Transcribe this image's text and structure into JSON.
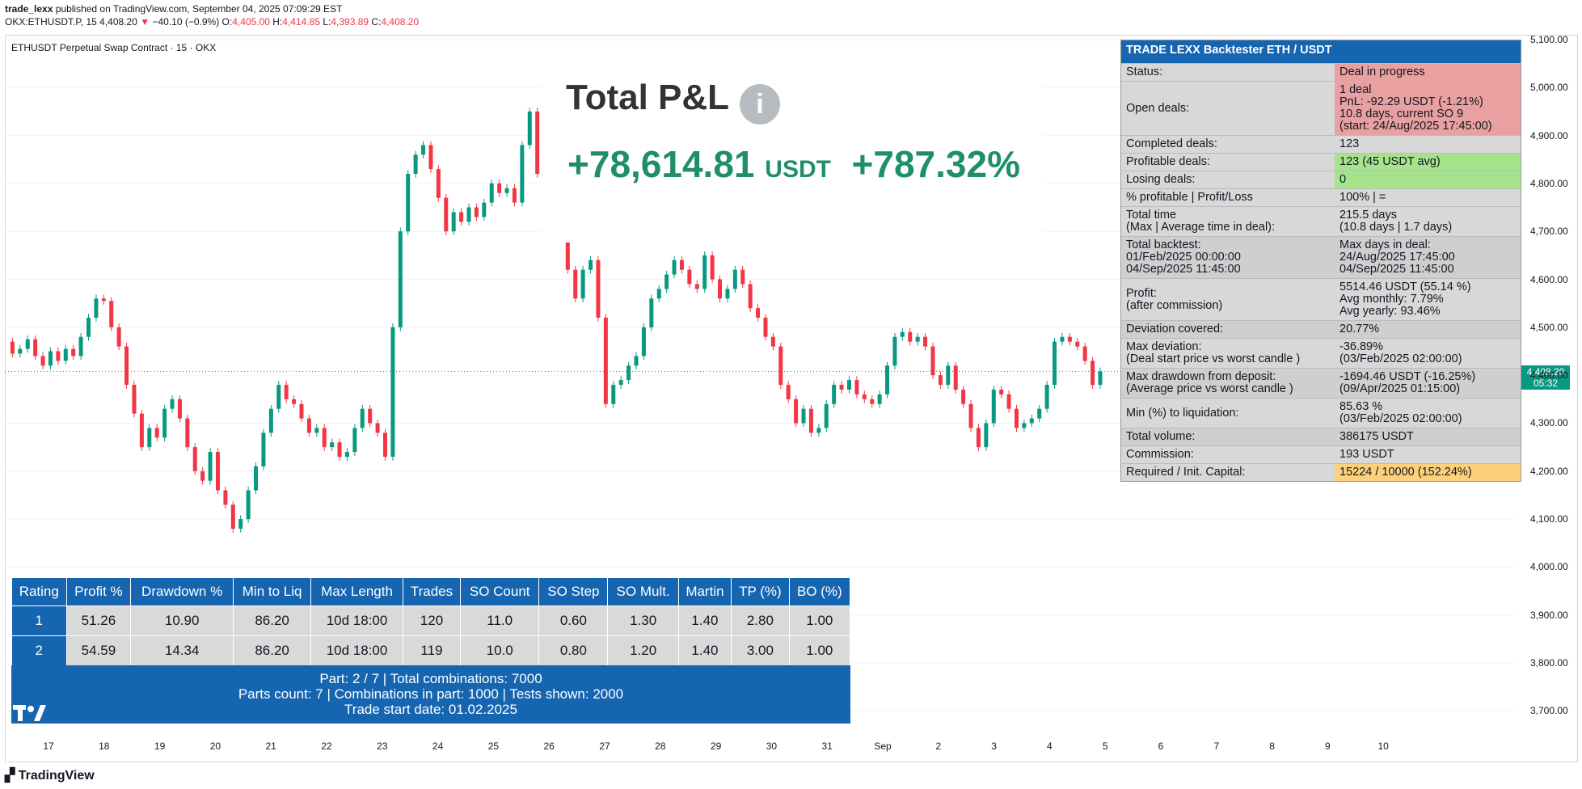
{
  "header": {
    "author": "trade_lexx",
    "published": "published on TradingView.com, September 04, 2025 07:09:29 EST",
    "ticker": "OKX:ETHUSDT.P, 15",
    "last": "4,408.20",
    "arrow": "▼",
    "change": "−40.10 (−0.9%)",
    "o_label": "O:",
    "o": "4,405.00",
    "h_label": "H:",
    "h": "4,414.85",
    "l_label": "L:",
    "l": "4,393.89",
    "c_label": "C:",
    "c": "4,408.20"
  },
  "symbol_title": "ETHUSDT Perpetual Swap Contract · 15 · OKX",
  "pnl": {
    "title": "Total P&L",
    "info_icon": "i",
    "value": "+78,614.81",
    "unit": "USDT",
    "percent": "+787.32%"
  },
  "backtester": {
    "title": "TRADE LEXX Backtester ETH / USDT",
    "rows": [
      {
        "label": "Status:",
        "value": "Deal in progress",
        "bg": "bred"
      },
      {
        "label": "Open deals:",
        "value": "1 deal\nPnL: -92.29 USDT (-1.21%)\n10.8 days, current SO 9\n(start: 24/Aug/2025 17:45:00)",
        "bg": "bred"
      },
      {
        "label": "Completed deals:",
        "value": "123",
        "bg": "g1"
      },
      {
        "label": "Profitable deals:",
        "value": "123 (45 USDT avg)",
        "bg": "bgreen"
      },
      {
        "label": "Losing deals:",
        "value": "0",
        "bg": "bgreen"
      },
      {
        "label": "% profitable | Profit/Loss",
        "value": "100% | =",
        "bg": "g1"
      },
      {
        "label": "Total time\n(Max | Average time in deal):",
        "value": "215.5 days\n(10.8 days   |   1.7 days)",
        "bg": "g1"
      },
      {
        "label": "Total backtest:\n01/Feb/2025 00:00:00\n04/Sep/2025 11:45:00",
        "value": "Max days in deal:\n24/Aug/2025 17:45:00\n04/Sep/2025 11:45:00",
        "bg": "g2"
      },
      {
        "label": "Profit:\n(after commission)",
        "value": "5514.46 USDT (55.14 %)\nAvg monthly: 7.79%\nAvg yearly: 93.46%",
        "bg": "g1"
      },
      {
        "label": "Deviation covered:",
        "value": "20.77%",
        "bg": "g2"
      },
      {
        "label": "Max deviation:\n(Deal start price vs worst candle )",
        "value": "-36.89%\n(03/Feb/2025 02:00:00)",
        "bg": "g1"
      },
      {
        "label": "Max drawdown from deposit:\n(Average price vs worst candle )",
        "value": "-1694.46 USDT (-16.25%)\n(09/Apr/2025 01:15:00)",
        "bg": "g2"
      },
      {
        "label": "Min (%) to liquidation:",
        "value": "85.63 %\n(03/Feb/2025 02:00:00)",
        "bg": "g1"
      },
      {
        "label": "Total volume:",
        "value": "386175 USDT",
        "bg": "g2"
      },
      {
        "label": "Commission:",
        "value": "193 USDT",
        "bg": "g1"
      },
      {
        "label": "Required / Init. Capital:",
        "value": "15224 / 10000 (152.24%)",
        "bg": "borange"
      }
    ]
  },
  "rating_table": {
    "columns": [
      "Rating",
      "Profit %",
      "Drawdown %",
      "Min to Liq",
      "Max Length",
      "Trades",
      "SO Count",
      "SO Step",
      "SO Mult.",
      "Martin",
      "TP (%)",
      "BO (%)"
    ],
    "rows": [
      [
        "1",
        "51.26",
        "10.90",
        "86.20",
        "10d 18:00",
        "120",
        "11.0",
        "0.60",
        "1.30",
        "1.40",
        "2.80",
        "1.00"
      ],
      [
        "2",
        "54.59",
        "14.34",
        "86.20",
        "10d 18:00",
        "119",
        "10.0",
        "0.80",
        "1.20",
        "1.40",
        "3.00",
        "1.00"
      ]
    ],
    "footer": [
      "Part: 2 / 7 | Total combinations: 7000",
      "Parts count: 7 | Combinations in part: 1000 | Tests shown: 2000",
      "Trade start date: 01.02.2025"
    ]
  },
  "price_tag": {
    "price": "4,408.20",
    "countdown": "05:32"
  },
  "footer_logo": "TradingView",
  "colors": {
    "up": "#089981",
    "down": "#f23645",
    "accent": "#1665b1"
  },
  "chart_data": {
    "type": "line",
    "series": [
      {
        "name": "",
        "values": [
          4470,
          4445,
          4455,
          4475,
          4440,
          4420,
          4450,
          4430,
          4455,
          4440,
          4480,
          4520,
          4560,
          4555,
          4500,
          4460,
          4380,
          4320,
          4250,
          4290,
          4270,
          4330,
          4350,
          4310,
          4250,
          4200,
          4180,
          4240,
          4160,
          4130,
          4080,
          4100,
          4160,
          4210,
          4280,
          4330,
          4380,
          4350,
          4340,
          4310,
          4280,
          4290,
          4250,
          4260,
          4230,
          4240,
          4290,
          4330,
          4300,
          4280,
          4230,
          4500,
          4700,
          4820,
          4860,
          4880,
          4830,
          4770,
          4700,
          4740,
          4720,
          4750,
          4730,
          4760,
          4800,
          4780,
          4790,
          4760,
          4880,
          4950,
          4820,
          4780,
          4740,
          4700,
          4620,
          4560,
          4620,
          4640,
          4520,
          4340,
          4380,
          4390,
          4420,
          4440,
          4500,
          4560,
          4580,
          4610,
          4640,
          4620,
          4590,
          4580,
          4650,
          4600,
          4560,
          4580,
          4620,
          4590,
          4540,
          4520,
          4480,
          4460,
          4380,
          4350,
          4300,
          4330,
          4280,
          4290,
          4340,
          4380,
          4370,
          4390,
          4360,
          4350,
          4340,
          4360,
          4420,
          4480,
          4490,
          4470,
          4480,
          4460,
          4400,
          4380,
          4420,
          4370,
          4340,
          4290,
          4250,
          4300,
          4370,
          4360,
          4330,
          4290,
          4300,
          4310,
          4330,
          4380,
          4470,
          4480,
          4470,
          4460,
          4430,
          4380,
          4408
        ]
      }
    ],
    "x_ticks": [
      "17",
      "18",
      "19",
      "20",
      "21",
      "22",
      "23",
      "24",
      "25",
      "26",
      "27",
      "28",
      "29",
      "30",
      "31",
      "Sep",
      "2",
      "3",
      "4",
      "5",
      "6",
      "7",
      "8",
      "9",
      "10"
    ],
    "y_ticks": [
      "5,100.00",
      "5,000.00",
      "4,900.00",
      "4,800.00",
      "4,700.00",
      "4,600.00",
      "4,500.00",
      "4,400.00",
      "4,300.00",
      "4,200.00",
      "4,100.00",
      "4,000.00",
      "3,900.00",
      "3,800.00",
      "3,700.00"
    ],
    "ylim": [
      3640,
      5110
    ]
  }
}
